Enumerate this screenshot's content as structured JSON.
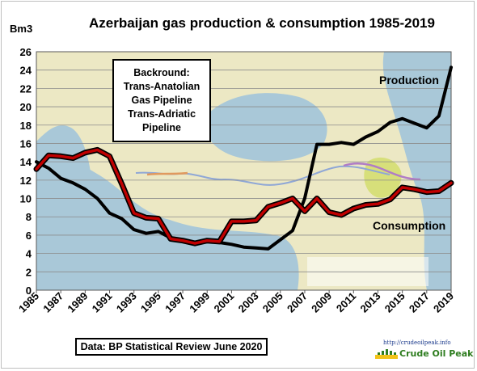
{
  "chart_data": {
    "type": "line",
    "title": "Azerbaijan  gas production & consumption 1985-2019",
    "ylabel": "Bm3",
    "xlabel": "",
    "x": [
      1985,
      1986,
      1987,
      1988,
      1989,
      1990,
      1991,
      1992,
      1993,
      1994,
      1995,
      1996,
      1997,
      1998,
      1999,
      2000,
      2001,
      2002,
      2003,
      2004,
      2005,
      2006,
      2007,
      2008,
      2009,
      2010,
      2011,
      2012,
      2013,
      2014,
      2015,
      2016,
      2017,
      2018,
      2019
    ],
    "xticks": [
      "1985",
      "1987",
      "1989",
      "1991",
      "1993",
      "1995",
      "1997",
      "1999",
      "2001",
      "2003",
      "2005",
      "2007",
      "2009",
      "2011",
      "2013",
      "2015",
      "2017",
      "2019"
    ],
    "ylim": [
      0,
      26
    ],
    "yticks": [
      "0",
      "2",
      "4",
      "6",
      "8",
      "10",
      "12",
      "14",
      "16",
      "18",
      "20",
      "22",
      "24",
      "26"
    ],
    "grid": true,
    "series": [
      {
        "name": "Production",
        "color": "#000000",
        "values": [
          14.0,
          13.3,
          12.2,
          11.7,
          11.0,
          10.0,
          8.4,
          7.8,
          6.6,
          6.2,
          6.4,
          5.7,
          5.5,
          5.2,
          5.4,
          5.2,
          5.0,
          4.7,
          4.6,
          4.5,
          5.5,
          6.5,
          10.0,
          15.9,
          15.9,
          16.1,
          15.9,
          16.7,
          17.3,
          18.3,
          18.7,
          18.2,
          17.7,
          19.0,
          24.3
        ]
      },
      {
        "name": "Consumption",
        "color": "#c00000",
        "values": [
          13.2,
          14.7,
          14.6,
          14.4,
          15.0,
          15.3,
          14.6,
          11.6,
          8.4,
          7.9,
          7.8,
          5.6,
          5.4,
          5.1,
          5.4,
          5.3,
          7.5,
          7.5,
          7.6,
          9.1,
          9.5,
          10.0,
          8.6,
          10.0,
          8.5,
          8.2,
          8.9,
          9.3,
          9.4,
          9.9,
          11.2,
          11.0,
          10.7,
          10.8,
          11.7
        ]
      }
    ],
    "annotations": {
      "note": [
        "Backround:",
        "Trans-Anatolian",
        "Gas Pipeline",
        "Trans-Adriatic",
        "Pipeline"
      ],
      "source": "Data: BP Statistical Review June 2020"
    }
  },
  "logo": {
    "url": "http://crudeoilpeak.info",
    "name": "Crude Oil Peak"
  },
  "colors": {
    "sea": "#a9c8d8",
    "land": "#ece8c4",
    "consumption_line": "#c00000",
    "production_line": "#000000"
  }
}
